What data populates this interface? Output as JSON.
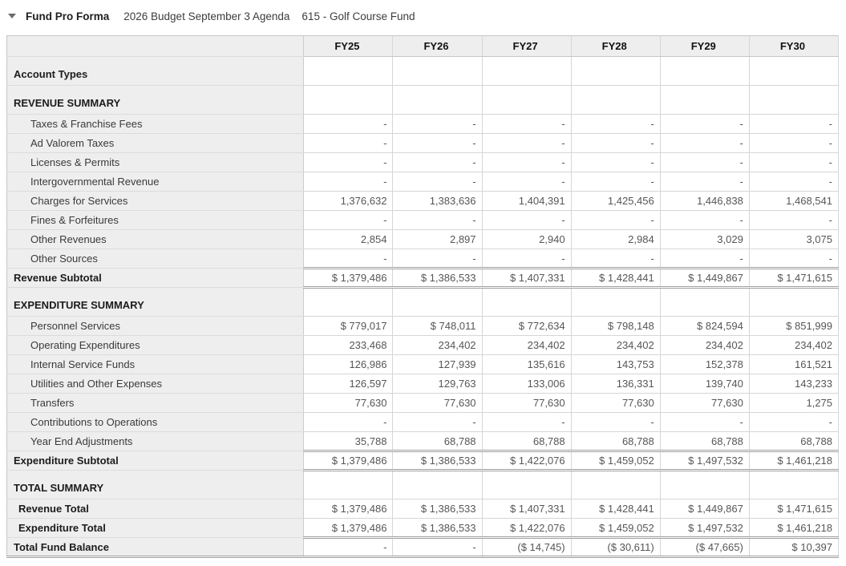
{
  "header": {
    "collapse_icon": "caret-down",
    "title": "Fund Pro Forma",
    "subtitle_budget": "2026 Budget September 3 Agenda",
    "subtitle_fund": "615 - Golf Course Fund"
  },
  "colors": {
    "header_bg": "#eeeeee",
    "label_col_bg": "#eeeeee",
    "grid_border": "#d6d6d6",
    "double_rule": "#a0a0a0",
    "number_text": "#565656",
    "label_text": "#333333"
  },
  "table": {
    "columns": [
      "FY25",
      "FY26",
      "FY27",
      "FY28",
      "FY29",
      "FY30"
    ],
    "rows": [
      {
        "label": "Account Types",
        "type": "section",
        "values": [
          "",
          "",
          "",
          "",
          "",
          ""
        ]
      },
      {
        "label": "REVENUE SUMMARY",
        "type": "section",
        "values": [
          "",
          "",
          "",
          "",
          "",
          ""
        ]
      },
      {
        "label": "Taxes & Franchise Fees",
        "type": "detail",
        "values": [
          "-",
          "-",
          "-",
          "-",
          "-",
          "-"
        ]
      },
      {
        "label": "Ad Valorem Taxes",
        "type": "detail",
        "values": [
          "-",
          "-",
          "-",
          "-",
          "-",
          "-"
        ]
      },
      {
        "label": "Licenses & Permits",
        "type": "detail",
        "values": [
          "-",
          "-",
          "-",
          "-",
          "-",
          "-"
        ]
      },
      {
        "label": "Intergovernmental Revenue",
        "type": "detail",
        "values": [
          "-",
          "-",
          "-",
          "-",
          "-",
          "-"
        ]
      },
      {
        "label": "Charges for Services",
        "type": "detail",
        "values": [
          "1,376,632",
          "1,383,636",
          "1,404,391",
          "1,425,456",
          "1,446,838",
          "1,468,541"
        ]
      },
      {
        "label": "Fines & Forfeitures",
        "type": "detail",
        "values": [
          "-",
          "-",
          "-",
          "-",
          "-",
          "-"
        ]
      },
      {
        "label": "Other Revenues",
        "type": "detail",
        "values": [
          "2,854",
          "2,897",
          "2,940",
          "2,984",
          "3,029",
          "3,075"
        ]
      },
      {
        "label": "Other Sources",
        "type": "detail",
        "values": [
          "-",
          "-",
          "-",
          "-",
          "-",
          "-"
        ]
      },
      {
        "label": "Revenue Subtotal",
        "type": "subtotal",
        "values": [
          "$ 1,379,486",
          "$ 1,386,533",
          "$ 1,407,331",
          "$ 1,428,441",
          "$ 1,449,867",
          "$ 1,471,615"
        ]
      },
      {
        "label": "EXPENDITURE SUMMARY",
        "type": "section",
        "values": [
          "",
          "",
          "",
          "",
          "",
          ""
        ]
      },
      {
        "label": "Personnel Services",
        "type": "detail",
        "values": [
          "$ 779,017",
          "$ 748,011",
          "$ 772,634",
          "$ 798,148",
          "$ 824,594",
          "$ 851,999"
        ]
      },
      {
        "label": "Operating Expenditures",
        "type": "detail",
        "values": [
          "233,468",
          "234,402",
          "234,402",
          "234,402",
          "234,402",
          "234,402"
        ]
      },
      {
        "label": "Internal Service Funds",
        "type": "detail",
        "values": [
          "126,986",
          "127,939",
          "135,616",
          "143,753",
          "152,378",
          "161,521"
        ]
      },
      {
        "label": "Utilities and Other Expenses",
        "type": "detail",
        "values": [
          "126,597",
          "129,763",
          "133,006",
          "136,331",
          "139,740",
          "143,233"
        ]
      },
      {
        "label": "Transfers",
        "type": "detail",
        "values": [
          "77,630",
          "77,630",
          "77,630",
          "77,630",
          "77,630",
          "1,275"
        ]
      },
      {
        "label": "Contributions to Operations",
        "type": "detail",
        "values": [
          "-",
          "-",
          "-",
          "-",
          "-",
          "-"
        ]
      },
      {
        "label": "Year End Adjustments",
        "type": "detail",
        "values": [
          "35,788",
          "68,788",
          "68,788",
          "68,788",
          "68,788",
          "68,788"
        ]
      },
      {
        "label": "Expenditure Subtotal",
        "type": "subtotal",
        "values": [
          "$ 1,379,486",
          "$ 1,386,533",
          "$ 1,422,076",
          "$ 1,459,052",
          "$ 1,497,532",
          "$ 1,461,218"
        ]
      },
      {
        "label": "TOTAL SUMMARY",
        "type": "section",
        "values": [
          "",
          "",
          "",
          "",
          "",
          ""
        ]
      },
      {
        "label": "Revenue Total",
        "type": "total",
        "values": [
          "$ 1,379,486",
          "$ 1,386,533",
          "$ 1,407,331",
          "$ 1,428,441",
          "$ 1,449,867",
          "$ 1,471,615"
        ]
      },
      {
        "label": "Expenditure Total",
        "type": "total",
        "values": [
          "$ 1,379,486",
          "$ 1,386,533",
          "$ 1,422,076",
          "$ 1,459,052",
          "$ 1,497,532",
          "$ 1,461,218"
        ]
      },
      {
        "label": "Total Fund Balance",
        "type": "grand",
        "values": [
          "-",
          "-",
          "($ 14,745)",
          "($ 30,611)",
          "($ 47,665)",
          "$ 10,397"
        ]
      }
    ]
  }
}
